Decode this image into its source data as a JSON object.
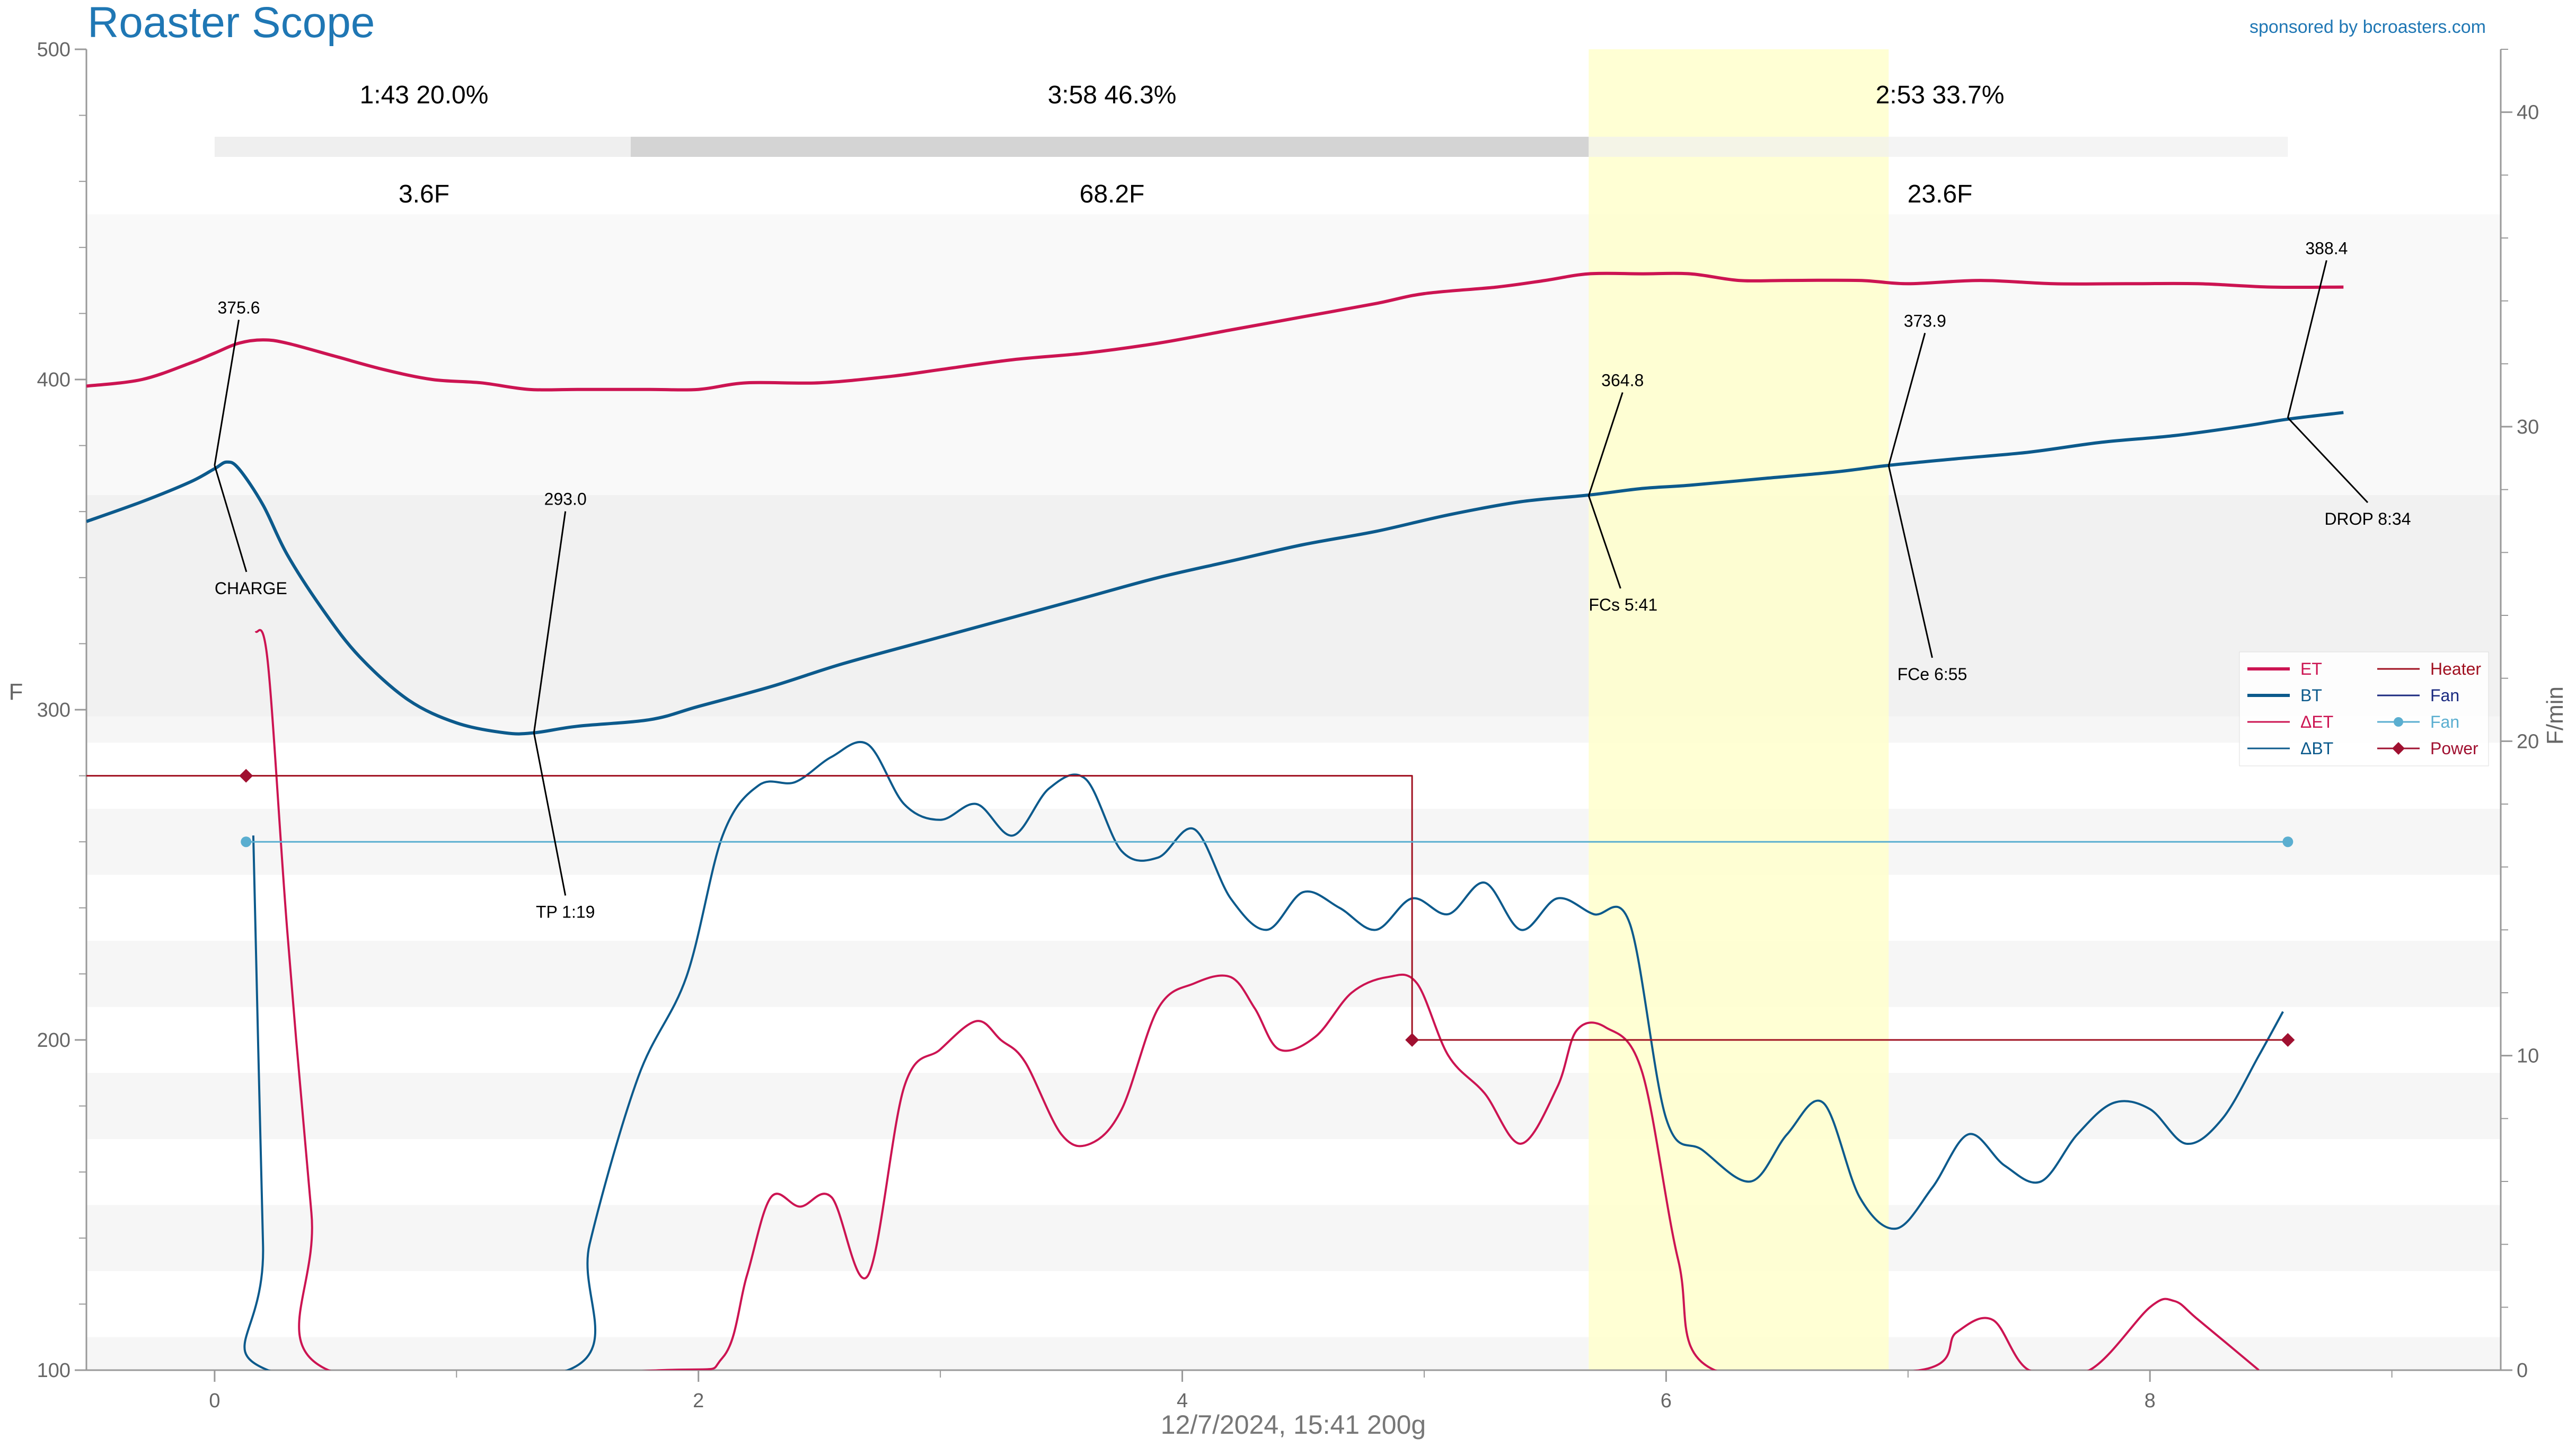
{
  "app": {
    "title": "Roaster Scope",
    "sponsor": "sponsored by bcroasters.com",
    "footer": "12/7/2024, 15:41   200g"
  },
  "colors": {
    "brand": "#1f77b4",
    "et": "#cc1452",
    "bt": "#0c5a8c",
    "delta_et": "#cc1452",
    "delta_bt": "#0c5a8c",
    "heater": "#a01020",
    "fan_line": "#1a2a80",
    "fan_point": "#5aaed0",
    "power": "#a01030",
    "fc_band": "#ffffcc"
  },
  "phases": [
    {
      "time": "1:43",
      "pct": "20.0%",
      "rise": "3.6F"
    },
    {
      "time": "3:58",
      "pct": "46.3%",
      "rise": "68.2F"
    },
    {
      "time": "2:53",
      "pct": "33.7%",
      "rise": "23.6F"
    }
  ],
  "annotations": [
    {
      "id": "charge",
      "value": "375.6",
      "label": "CHARGE"
    },
    {
      "id": "tp",
      "value": "293.0",
      "label": "TP 1:19"
    },
    {
      "id": "fcs",
      "value": "364.8",
      "label": "FCs 5:41"
    },
    {
      "id": "fce",
      "value": "373.9",
      "label": "FCe 6:55"
    },
    {
      "id": "drop",
      "value": "388.4",
      "label": "DROP 8:34"
    }
  ],
  "legend": [
    {
      "label": "ET",
      "color": "#cc1452",
      "marker": "line-thick"
    },
    {
      "label": "BT",
      "color": "#0c5a8c",
      "marker": "line-thick"
    },
    {
      "label": "ΔET",
      "color": "#cc1452",
      "marker": "line"
    },
    {
      "label": "ΔBT",
      "color": "#0c5a8c",
      "marker": "line"
    },
    {
      "label": "Heater",
      "color": "#a01020",
      "marker": "line"
    },
    {
      "label": "Fan",
      "color": "#1a2a80",
      "marker": "line"
    },
    {
      "label": "Fan",
      "color": "#5aaed0",
      "marker": "line-dot"
    },
    {
      "label": "Power",
      "color": "#a01030",
      "marker": "line-diamond"
    }
  ],
  "chart_data": {
    "type": "line",
    "title": "Roaster Scope",
    "xlabel": "",
    "ylabel": "F",
    "y2label": "F/min",
    "xlim": [
      -0.53,
      9.45
    ],
    "ylim": [
      100,
      500
    ],
    "y2lim": [
      0,
      42
    ],
    "x_ticks": [
      0,
      2,
      4,
      6,
      8
    ],
    "y_ticks": [
      100,
      200,
      300,
      400,
      500
    ],
    "y2_ticks": [
      0,
      10,
      20,
      30,
      40
    ],
    "grid": true,
    "legend_position": "right",
    "first_crack_band": [
      5.68,
      6.92
    ],
    "series": [
      {
        "name": "ET",
        "axis": "left",
        "x": [
          -0.53,
          -0.3,
          -0.1,
          0.0,
          0.1,
          0.2,
          0.3,
          0.5,
          0.7,
          0.9,
          1.1,
          1.3,
          1.5,
          1.8,
          2.0,
          2.2,
          2.5,
          2.8,
          3.0,
          3.3,
          3.6,
          3.9,
          4.2,
          4.5,
          4.8,
          5.0,
          5.3,
          5.5,
          5.68,
          5.9,
          6.1,
          6.3,
          6.5,
          6.8,
          7.0,
          7.3,
          7.6,
          7.9,
          8.2,
          8.5,
          8.8
        ],
        "values": [
          398,
          400,
          405,
          408,
          411,
          412,
          411,
          407,
          403,
          400,
          399,
          397,
          397,
          397,
          397,
          399,
          399,
          401,
          403,
          406,
          408,
          411,
          415,
          419,
          423,
          426,
          428,
          430,
          432,
          432,
          432,
          430,
          430,
          430,
          429,
          430,
          429,
          429,
          429,
          428,
          428
        ]
      },
      {
        "name": "BT",
        "axis": "left",
        "x": [
          -0.53,
          -0.3,
          -0.1,
          0.0,
          0.05,
          0.1,
          0.2,
          0.3,
          0.45,
          0.6,
          0.8,
          1.0,
          1.2,
          1.32,
          1.5,
          1.8,
          2.0,
          2.3,
          2.6,
          3.0,
          3.3,
          3.6,
          3.9,
          4.2,
          4.5,
          4.8,
          5.1,
          5.4,
          5.68,
          5.9,
          6.1,
          6.4,
          6.7,
          6.92,
          7.2,
          7.5,
          7.8,
          8.1,
          8.4,
          8.57,
          8.8
        ],
        "values": [
          357,
          363,
          369,
          373,
          375,
          373,
          362,
          347,
          330,
          316,
          303,
          296,
          293,
          293,
          295,
          297,
          301,
          307,
          314,
          322,
          328,
          334,
          340,
          345,
          350,
          354,
          359,
          363,
          365,
          367,
          368,
          370,
          372,
          374,
          376,
          378,
          381,
          383,
          386,
          388,
          390
        ]
      },
      {
        "name": "ΔET",
        "axis": "right",
        "x": [
          0.17,
          0.22,
          0.3,
          0.4,
          0.47,
          1.85,
          2.1,
          2.2,
          2.3,
          2.42,
          2.55,
          2.7,
          2.85,
          3.0,
          3.15,
          3.25,
          3.35,
          3.5,
          3.62,
          3.75,
          3.9,
          4.05,
          4.2,
          4.3,
          4.4,
          4.55,
          4.7,
          4.85,
          4.97,
          5.1,
          5.25,
          5.4,
          5.55,
          5.63,
          5.75,
          5.9,
          6.05,
          6.2,
          7.05,
          7.2,
          7.35,
          7.5,
          7.75,
          8.0,
          8.1,
          8.2,
          8.45
        ],
        "values": [
          23.5,
          22.5,
          14,
          5,
          0,
          0,
          0.4,
          3,
          5.5,
          5.2,
          5.5,
          3,
          9,
          10.2,
          11.1,
          10.5,
          9.8,
          7.5,
          7.2,
          8.3,
          11.5,
          12.3,
          12.5,
          11.5,
          10.2,
          10.6,
          12,
          12.5,
          12.3,
          10,
          8.8,
          7.2,
          9,
          10.8,
          10.9,
          9.5,
          3.5,
          0,
          0,
          1.2,
          1.6,
          0,
          0,
          2,
          2.2,
          1.6,
          0
        ]
      },
      {
        "name": "ΔBT",
        "axis": "right",
        "x": [
          0.16,
          0.2,
          0.22,
          1.46,
          1.55,
          1.75,
          1.95,
          2.1,
          2.25,
          2.4,
          2.55,
          2.7,
          2.85,
          3.0,
          3.15,
          3.3,
          3.45,
          3.6,
          3.75,
          3.9,
          4.05,
          4.2,
          4.35,
          4.5,
          4.65,
          4.8,
          4.95,
          5.1,
          5.25,
          5.4,
          5.55,
          5.7,
          5.85,
          6.0,
          6.15,
          6.35,
          6.5,
          6.65,
          6.8,
          6.95,
          7.1,
          7.25,
          7.4,
          7.55,
          7.7,
          7.85,
          8.0,
          8.15,
          8.3,
          8.45,
          8.55
        ],
        "values": [
          17,
          4,
          0,
          0,
          4,
          9.3,
          12.5,
          17,
          18.6,
          18.7,
          19.5,
          19.9,
          18,
          17.5,
          18,
          17,
          18.5,
          18.8,
          16.5,
          16.3,
          17.2,
          15,
          14,
          15.2,
          14.7,
          14,
          15,
          14.5,
          15.5,
          14,
          15,
          14.5,
          14.2,
          8,
          7,
          6,
          7.5,
          8.5,
          5.5,
          4.5,
          5.8,
          7.5,
          6.5,
          6,
          7.5,
          8.5,
          8.3,
          7.2,
          8,
          10,
          11.4
        ]
      },
      {
        "name": "Heater",
        "axis": "left",
        "x": [
          -0.53,
          4.95,
          4.95,
          8.57
        ],
        "values": [
          280,
          280,
          200,
          200
        ]
      },
      {
        "name": "Fan",
        "axis": "left",
        "x": [
          0.13,
          8.57
        ],
        "values": [
          260,
          260
        ]
      },
      {
        "name": "Power",
        "axis": "left",
        "x": [
          0.13,
          4.95,
          8.57
        ],
        "values": [
          280,
          200,
          200
        ]
      }
    ]
  }
}
